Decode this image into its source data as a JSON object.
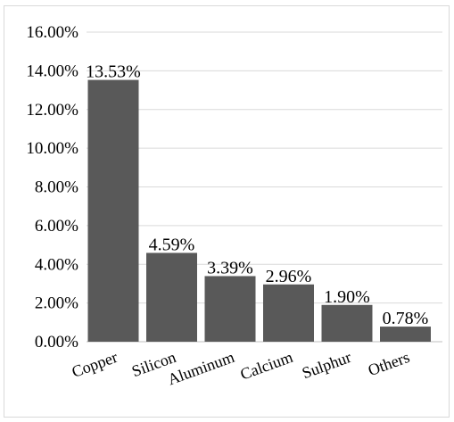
{
  "chart_data": {
    "type": "bar",
    "title": "",
    "xlabel": "",
    "ylabel": "",
    "categories": [
      "Copper",
      "Silicon",
      "Aluminum",
      "Calcium",
      "Sulphur",
      "Others"
    ],
    "values": [
      13.53,
      4.59,
      3.39,
      2.96,
      1.9,
      0.78
    ],
    "data_labels": [
      "13.53%",
      "4.59%",
      "3.39%",
      "2.96%",
      "1.90%",
      "0.78%"
    ],
    "y_ticks": [
      0,
      2,
      4,
      6,
      8,
      10,
      12,
      14,
      16
    ],
    "y_tick_labels": [
      "0.00%",
      "2.00%",
      "4.00%",
      "6.00%",
      "8.00%",
      "10.00%",
      "12.00%",
      "14.00%",
      "16.00%"
    ],
    "ylim": [
      0,
      16
    ],
    "bar_color": "#595959",
    "gridlines": true,
    "legend": false
  }
}
